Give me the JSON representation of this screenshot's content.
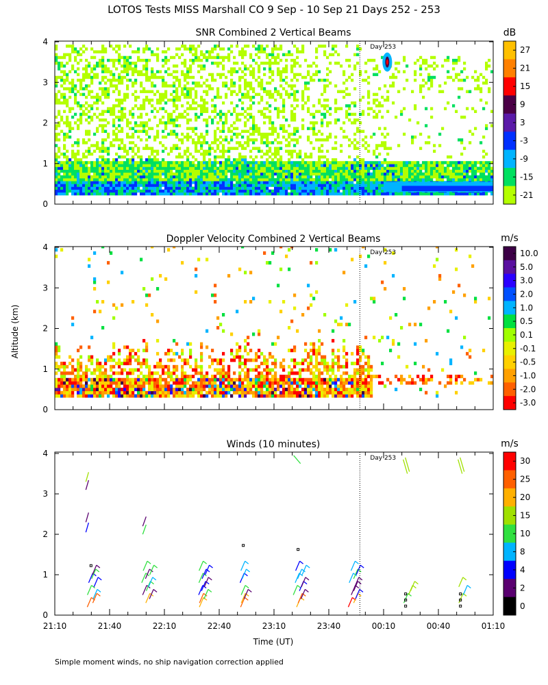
{
  "figure": {
    "title": "LOTOS Tests MISS Marshall CO   9 Sep - 10 Sep 21 Days 252 - 253",
    "ylabel": "Altitude (km)",
    "xlabel": "Time (UT)",
    "footnote": "Simple moment winds, no ship navigation correction applied",
    "day_marker_label": "Day 253",
    "day_marker_time": "23:57"
  },
  "chart_data": [
    {
      "type": "heatmap",
      "title": "SNR Combined 2 Vertical Beams",
      "ylim": [
        0,
        4
      ],
      "yticks": [
        "0",
        "1",
        "2",
        "3",
        "4"
      ],
      "xlim": [
        "21:10",
        "01:10"
      ],
      "xticks": [
        "21:10",
        "21:40",
        "22:10",
        "22:40",
        "23:10",
        "23:40",
        "00:10",
        "00:40",
        "01:10"
      ],
      "colorbar": {
        "unit": "dB",
        "labels": [
          "27",
          "21",
          "15",
          "9",
          "3",
          "-3",
          "-9",
          "-15",
          "-21"
        ],
        "colors": [
          "#ffc000",
          "#ff8000",
          "#ff0000",
          "#4b0046",
          "#5a1aa8",
          "#0030ff",
          "#00b4ff",
          "#00e060",
          "#b4ff00"
        ]
      }
    },
    {
      "type": "heatmap",
      "title": "Doppler Velocity Combined 2 Vertical Beams",
      "ylim": [
        0,
        4
      ],
      "yticks": [
        "0",
        "1",
        "2",
        "3",
        "4"
      ],
      "xlim": [
        "21:10",
        "01:10"
      ],
      "colorbar": {
        "unit": "m/s",
        "labels": [
          "10.0",
          "5.0",
          "3.0",
          "2.0",
          "1.0",
          "0.5",
          "0.1",
          "-0.1",
          "-0.5",
          "-1.0",
          "-2.0",
          "-3.0"
        ],
        "colors": [
          "#3c0046",
          "#5a10a0",
          "#2a00ff",
          "#0050ff",
          "#00b4ff",
          "#00e040",
          "#a0ff00",
          "#e8f000",
          "#ffd000",
          "#ffa000",
          "#ff6000",
          "#ff0000"
        ]
      }
    },
    {
      "type": "scatter",
      "title": "Winds (10 minutes)",
      "ylim": [
        0,
        4
      ],
      "yticks": [
        "0",
        "1",
        "2",
        "3",
        "4"
      ],
      "xlim": [
        "21:10",
        "01:10"
      ],
      "xticks": [
        "21:10",
        "21:40",
        "22:10",
        "22:40",
        "23:10",
        "23:40",
        "00:10",
        "00:40",
        "01:10"
      ],
      "colorbar": {
        "unit": "m/s",
        "labels": [
          "30",
          "25",
          "20",
          "15",
          "10",
          "8",
          "4",
          "2",
          "0"
        ],
        "colors": [
          "#ff0000",
          "#ff6000",
          "#ffb000",
          "#a0e000",
          "#30e040",
          "#00b4ff",
          "#0000ff",
          "#5a0070",
          "#000000"
        ]
      },
      "profile_times": [
        "21:30",
        "22:00",
        "22:30",
        "22:53",
        "23:23",
        "23:53",
        "00:23",
        "00:53"
      ]
    }
  ]
}
